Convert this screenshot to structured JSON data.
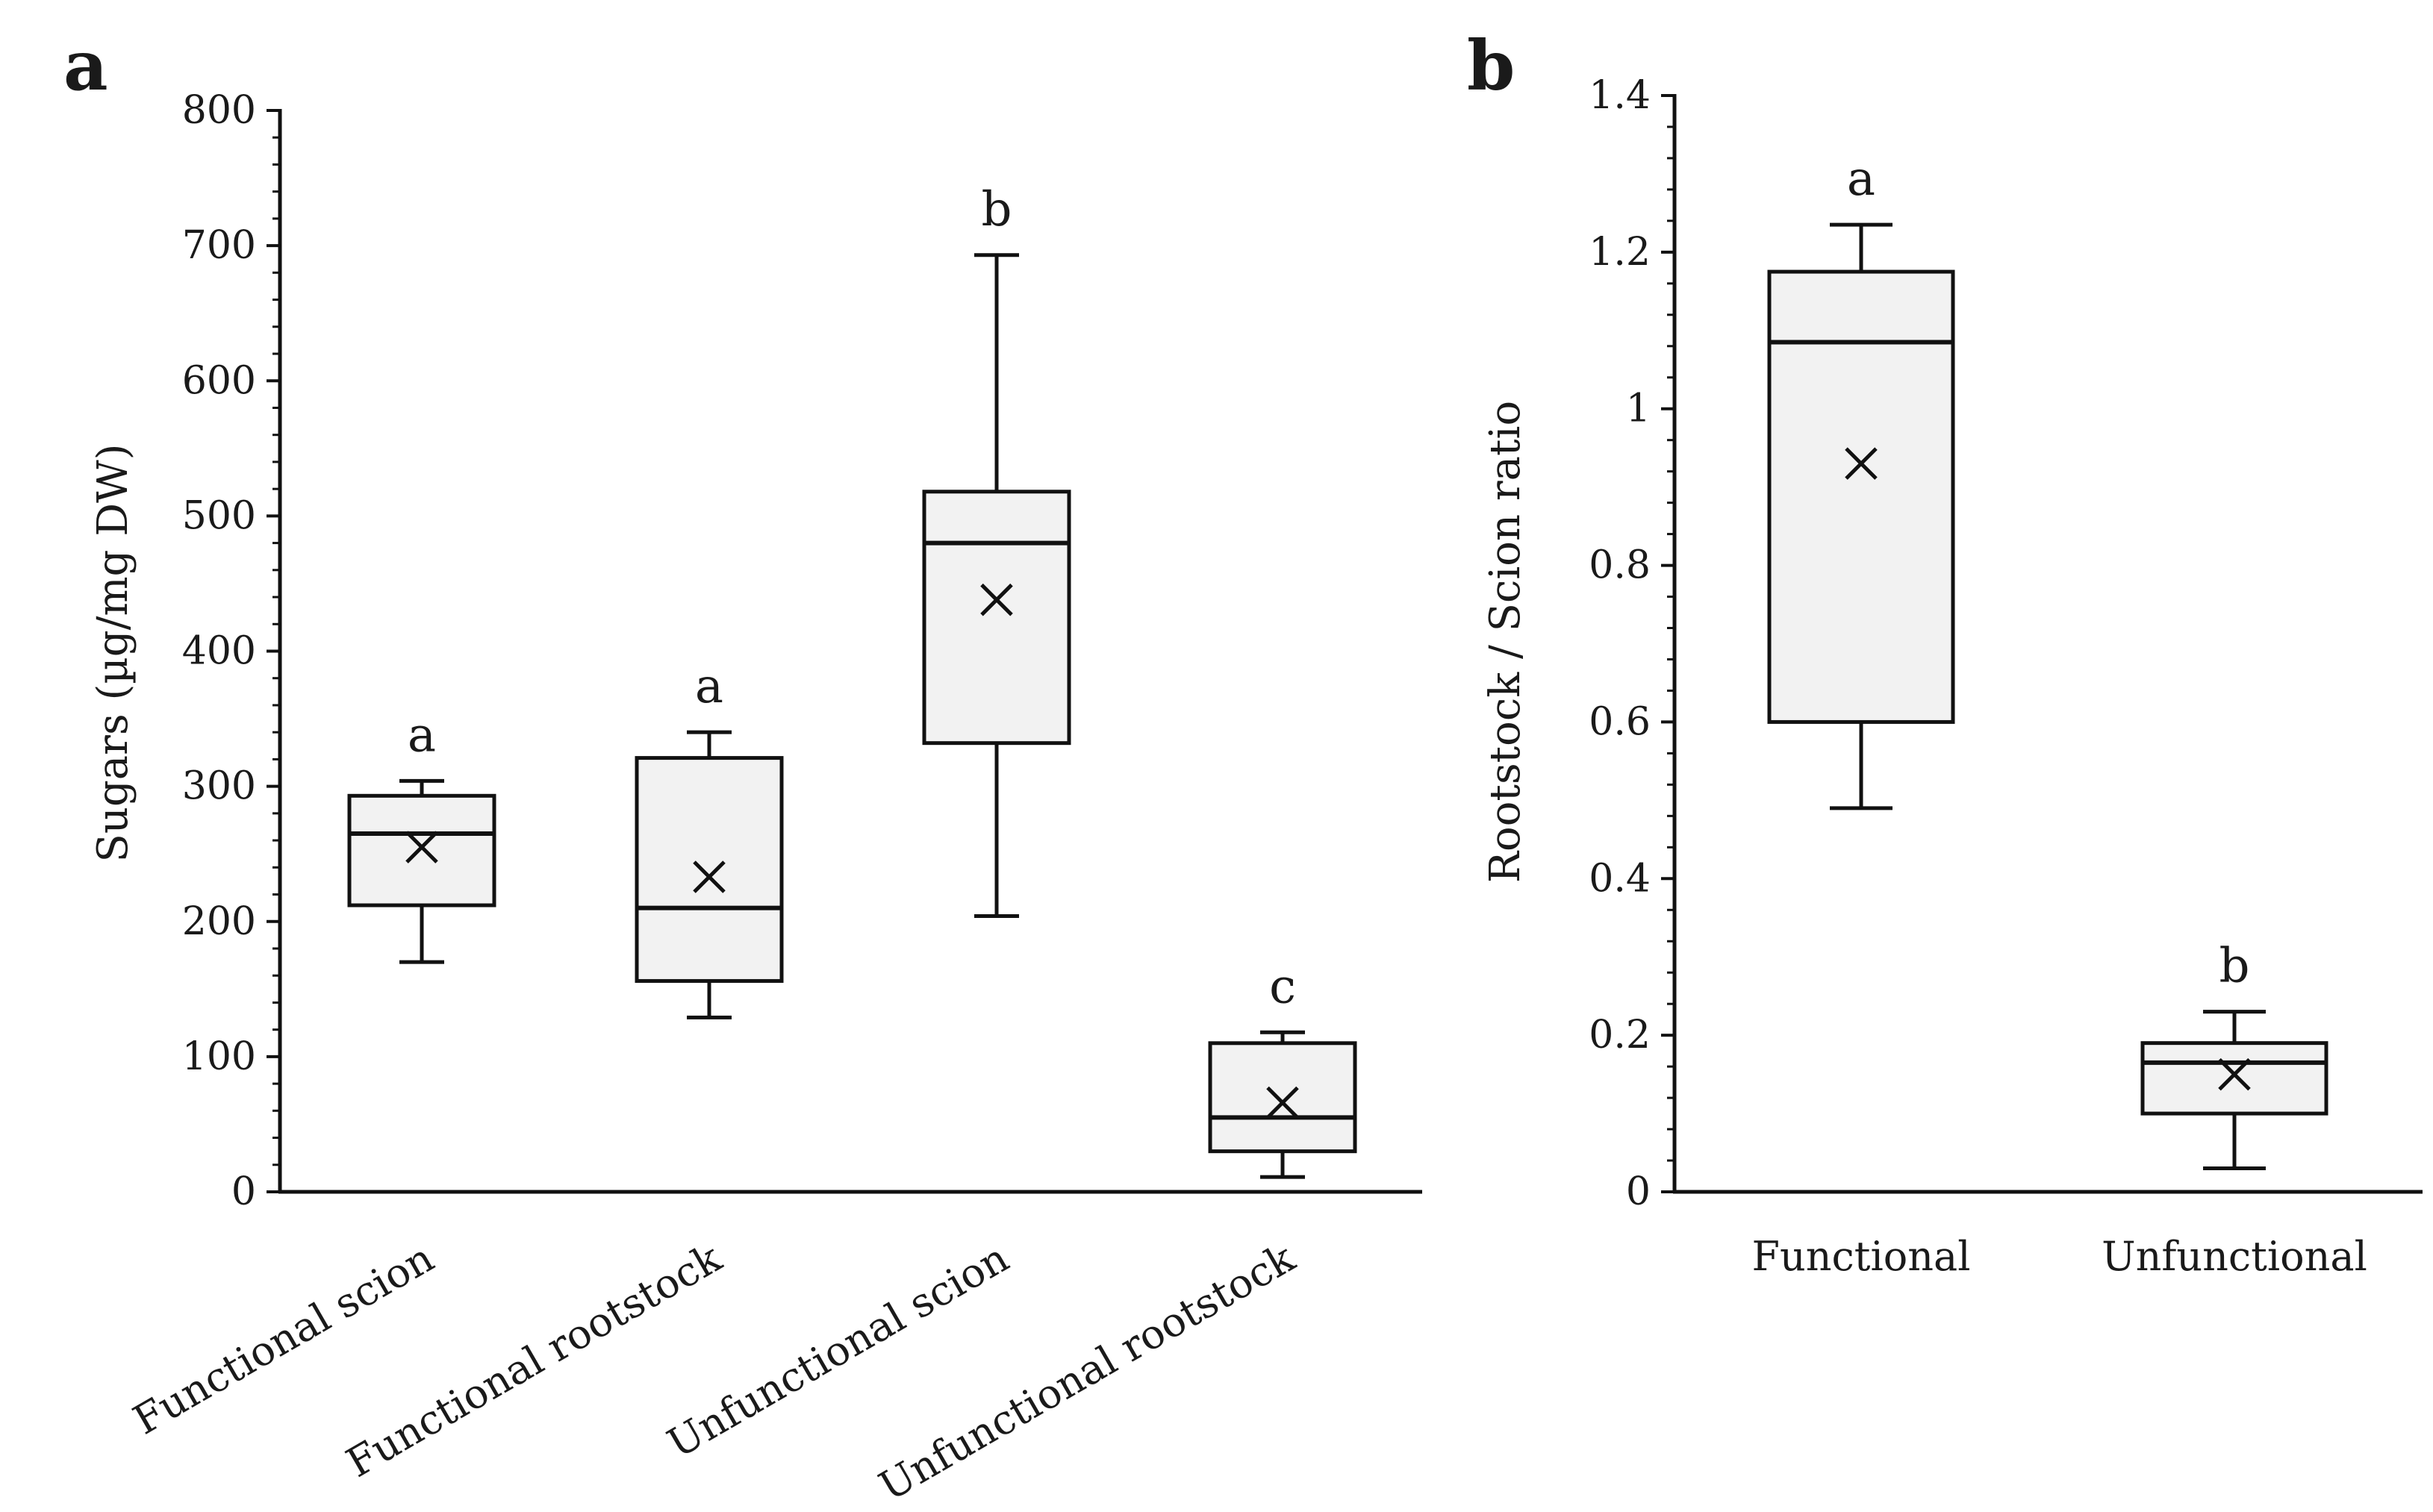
{
  "chart_data": [
    {
      "type": "box",
      "panel_label": "a",
      "title": "",
      "xlabel": "",
      "ylabel": "Sugars (µg/mg DW)",
      "ylim": [
        0,
        800
      ],
      "yticks": [
        0,
        100,
        200,
        300,
        400,
        500,
        600,
        700,
        800
      ],
      "ytick_labels": [
        "0",
        "100",
        "200",
        "300",
        "400",
        "500",
        "600",
        "700",
        "800"
      ],
      "categories": [
        "Functional scion",
        "Functional rootstock",
        "Unfunctional scion",
        "Unfunctional rootstock"
      ],
      "boxes": [
        {
          "min": 170,
          "q1": 212,
          "median": 265,
          "q3": 293,
          "max": 304,
          "mean": 255,
          "letter": "a"
        },
        {
          "min": 129,
          "q1": 156,
          "median": 210,
          "q3": 321,
          "max": 340,
          "mean": 233,
          "letter": "a"
        },
        {
          "min": 204,
          "q1": 332,
          "median": 480,
          "q3": 518,
          "max": 693,
          "mean": 438,
          "letter": "b"
        },
        {
          "min": 11,
          "q1": 30,
          "median": 55,
          "q3": 110,
          "max": 118,
          "mean": 66,
          "letter": "c"
        }
      ]
    },
    {
      "type": "box",
      "panel_label": "b",
      "title": "",
      "xlabel": "",
      "ylabel": "Rootstock / Scion ratio",
      "ylim": [
        0,
        1.4
      ],
      "yticks": [
        0,
        0.2,
        0.4,
        0.6,
        0.8,
        1,
        1.2,
        1.4
      ],
      "ytick_labels": [
        "0",
        "0.2",
        "0.4",
        "0.6",
        "0.8",
        "1",
        "1.2",
        "1.4"
      ],
      "categories": [
        "Functional",
        "Unfunctional"
      ],
      "boxes": [
        {
          "min": 0.49,
          "q1": 0.6,
          "median": 1.085,
          "q3": 1.175,
          "max": 1.235,
          "mean": 0.93,
          "letter": "a"
        },
        {
          "min": 0.03,
          "q1": 0.1,
          "median": 0.165,
          "q3": 0.19,
          "max": 0.23,
          "mean": 0.15,
          "letter": "b"
        }
      ]
    }
  ]
}
